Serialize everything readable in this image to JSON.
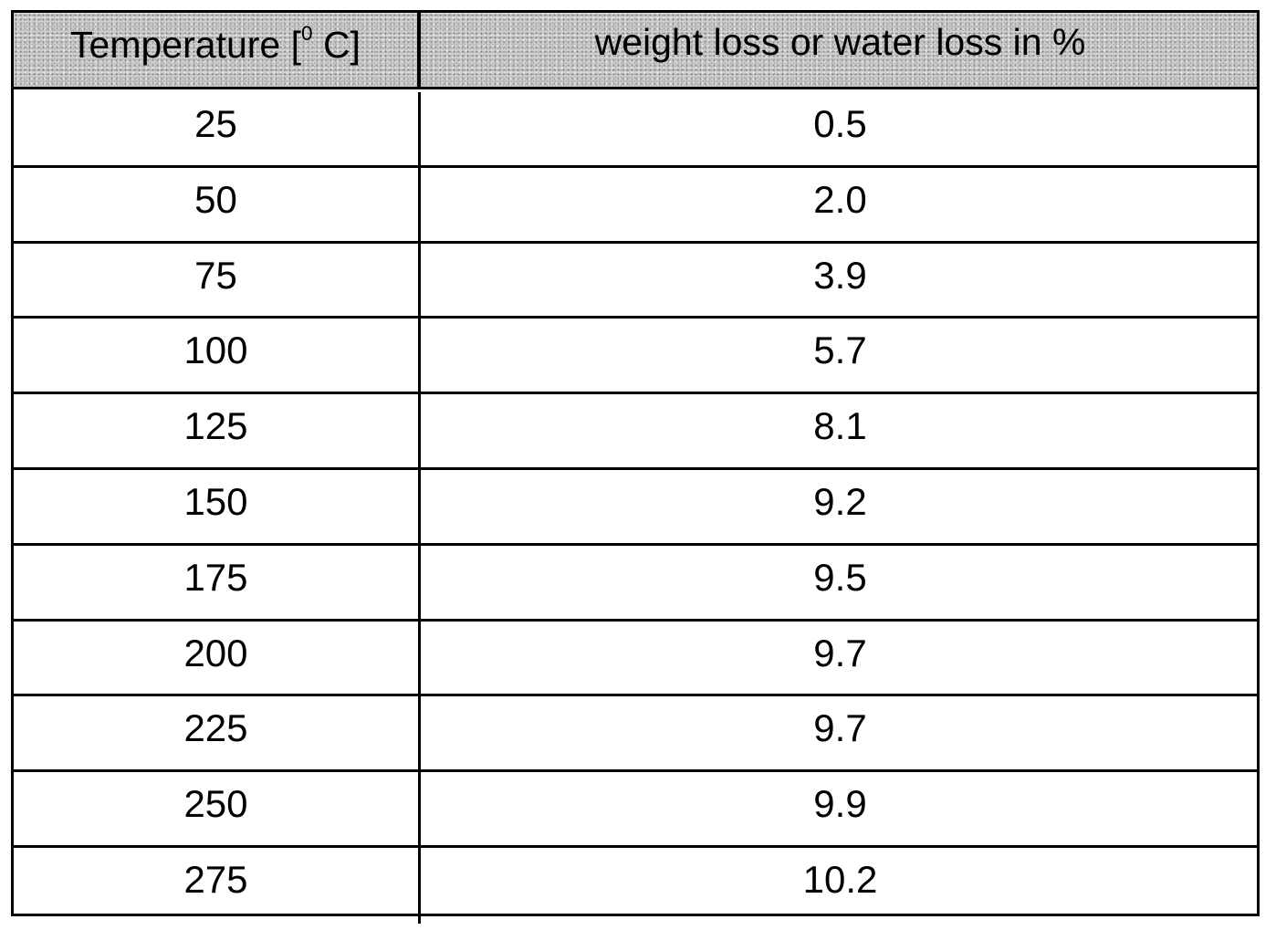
{
  "table": {
    "headers": {
      "temperature_prefix": "Temperature [",
      "temperature_sup": "0",
      "temperature_suffix": " C]",
      "loss": "weight loss or water loss in %"
    },
    "rows": [
      {
        "temperature": "25",
        "loss": "0.5"
      },
      {
        "temperature": "50",
        "loss": "2.0"
      },
      {
        "temperature": "75",
        "loss": "3.9"
      },
      {
        "temperature": "100",
        "loss": "5.7"
      },
      {
        "temperature": "125",
        "loss": "8.1"
      },
      {
        "temperature": "150",
        "loss": "9.2"
      },
      {
        "temperature": "175",
        "loss": "9.5"
      },
      {
        "temperature": "200",
        "loss": "9.7"
      },
      {
        "temperature": "225",
        "loss": "9.7"
      },
      {
        "temperature": "250",
        "loss": "9.9"
      },
      {
        "temperature": "275",
        "loss": "10.2"
      }
    ]
  }
}
